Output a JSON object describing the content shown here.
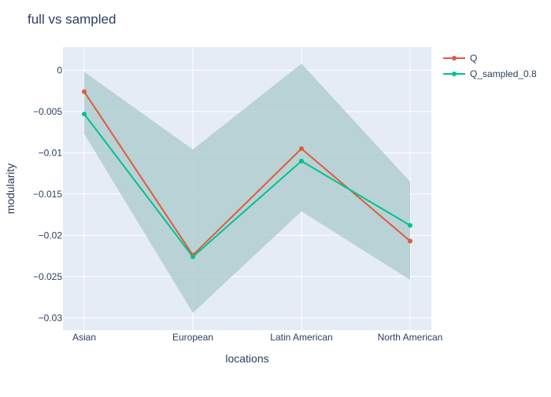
{
  "chart_data": {
    "type": "line",
    "title": "full vs sampled",
    "xlabel": "locations",
    "ylabel": "modularity",
    "categories": [
      "Asian",
      "European",
      "Latin American",
      "North American"
    ],
    "ylim": [
      -0.0315,
      0.0028
    ],
    "yticks": [
      0,
      -0.005,
      -0.01,
      -0.015,
      -0.02,
      -0.025,
      -0.03
    ],
    "ytick_labels": [
      "0",
      "−0.005",
      "−0.01",
      "−0.015",
      "−0.02",
      "−0.025",
      "−0.03"
    ],
    "grid": true,
    "legend_position": "top-right",
    "band": {
      "upper": [
        -0.0002,
        -0.0096,
        0.0008,
        -0.0135
      ],
      "lower": [
        -0.0077,
        -0.0294,
        -0.0171,
        -0.0254
      ],
      "color": "#a9c9c9"
    },
    "series": [
      {
        "name": "Q",
        "values": [
          -0.0026,
          -0.0224,
          -0.0095,
          -0.0207
        ],
        "color": "#de5b3f"
      },
      {
        "name": "Q_sampled_0.8",
        "values": [
          -0.0053,
          -0.0226,
          -0.011,
          -0.0188
        ],
        "color": "#00c28d"
      }
    ]
  }
}
